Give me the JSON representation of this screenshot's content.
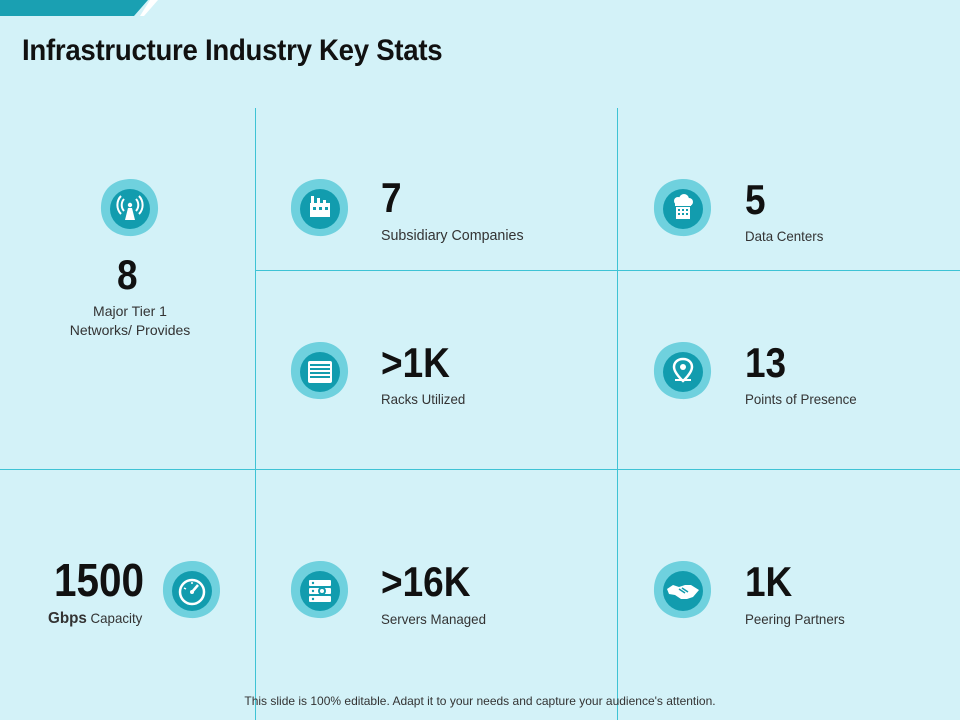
{
  "title": "Infrastructure Industry Key Stats",
  "colors": {
    "background": "#d3f2f8",
    "accent": "#1aa9bb",
    "blob_outer": "#6fd1de",
    "blob_inner": "#129cae",
    "grid": "#3ec3d5"
  },
  "stats": {
    "networks": {
      "value": "8",
      "label_line1": "Major Tier 1",
      "label_line2": "Networks/ Provides",
      "icon": "antenna-icon"
    },
    "subsidiaries": {
      "value": "7",
      "label": "Subsidiary Companies",
      "icon": "factory-icon"
    },
    "data_centers": {
      "value": "5",
      "label": "Data Centers",
      "icon": "cloud-building-icon"
    },
    "racks": {
      "value": ">1K",
      "label": "Racks Utilized",
      "icon": "rack-icon"
    },
    "presence": {
      "value": "13",
      "label": "Points of Presence",
      "icon": "location-pin-icon"
    },
    "capacity": {
      "value": "1500",
      "label_bold": "Gbps",
      "label_rest": " Capacity",
      "icon": "speedometer-icon"
    },
    "servers": {
      "value": ">16K",
      "label": "Servers Managed",
      "icon": "server-icon"
    },
    "peering": {
      "value": "1K",
      "label": "Peering Partners",
      "icon": "handshake-icon"
    }
  },
  "footer": "This slide is 100% editable. Adapt it to your needs and capture your audience's attention."
}
